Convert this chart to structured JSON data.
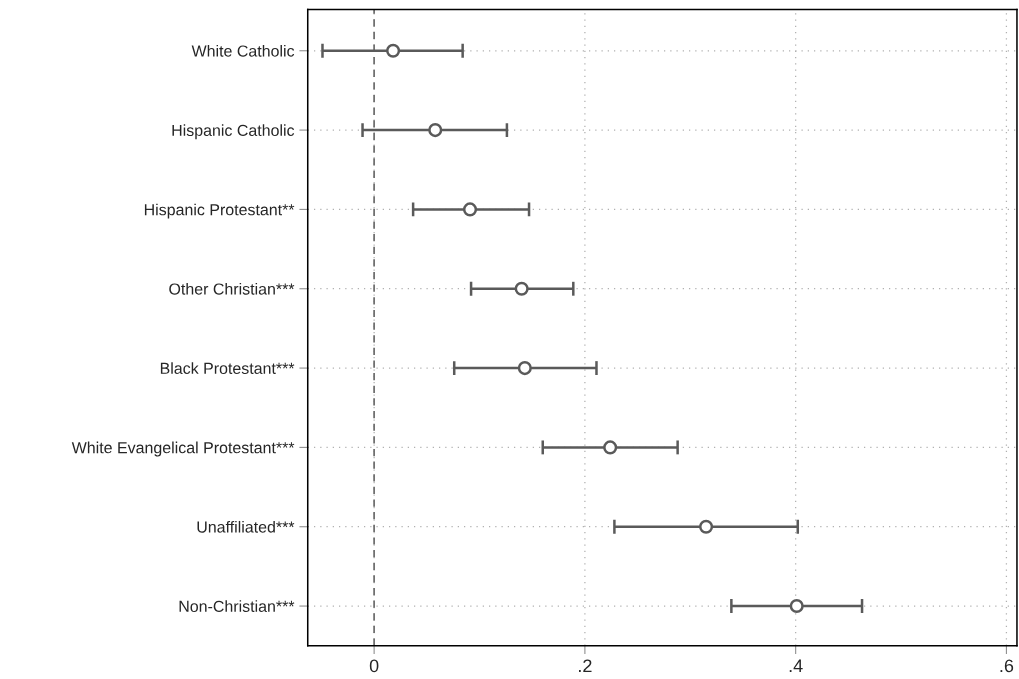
{
  "chart_data": {
    "type": "scatter",
    "orientation": "horizontal",
    "categories": [
      "White Catholic",
      "Hispanic Catholic",
      "Hispanic Protestant**",
      "Other Christian***",
      "Black Protestant***",
      "White Evangelical Protestant***",
      "Unaffiliated***",
      "Non-Christian***"
    ],
    "values": [
      0.018,
      0.058,
      0.091,
      0.14,
      0.143,
      0.224,
      0.315,
      0.401
    ],
    "errors": [
      [
        -0.049,
        0.084
      ],
      [
        -0.011,
        0.126
      ],
      [
        0.037,
        0.147
      ],
      [
        0.092,
        0.189
      ],
      [
        0.076,
        0.211
      ],
      [
        0.16,
        0.288
      ],
      [
        0.228,
        0.402
      ],
      [
        0.339,
        0.463
      ]
    ],
    "color": "#5a5a5a",
    "marker": "circle",
    "xlim": [
      -0.063,
      0.61
    ],
    "xticks": [
      0,
      {
        "value": 0.2,
        "label": ".2"
      },
      {
        "value": 0.4,
        "label": ".4"
      },
      {
        "value": 0.6,
        "label": ".6"
      }
    ],
    "ref_lines": [
      {
        "axis": "x",
        "value": 0,
        "color": "#707070",
        "line_style": "dashed"
      }
    ],
    "grid": true
  }
}
